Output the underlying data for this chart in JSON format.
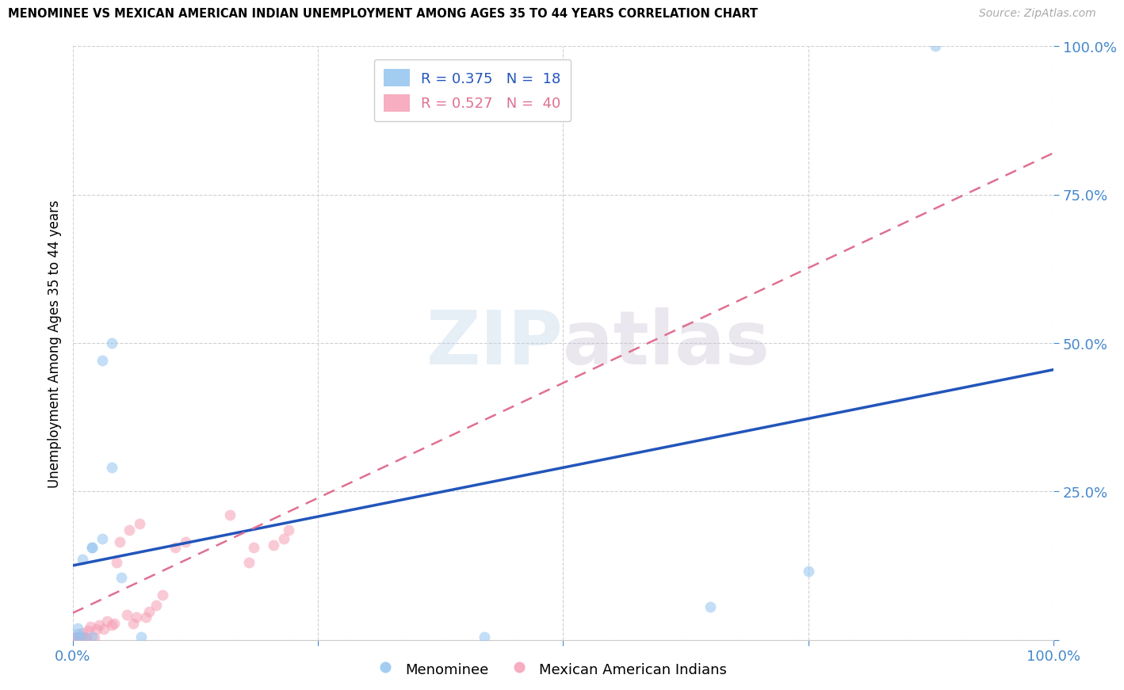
{
  "title": "MENOMINEE VS MEXICAN AMERICAN INDIAN UNEMPLOYMENT AMONG AGES 35 TO 44 YEARS CORRELATION CHART",
  "source": "Source: ZipAtlas.com",
  "ylabel_label": "Unemployment Among Ages 35 to 44 years",
  "xlim": [
    0,
    1.0
  ],
  "ylim": [
    0,
    1.0
  ],
  "xticks": [
    0.0,
    0.25,
    0.5,
    0.75,
    1.0
  ],
  "yticks": [
    0.0,
    0.25,
    0.5,
    0.75,
    1.0
  ],
  "xticklabels": [
    "0.0%",
    "",
    "",
    "",
    "100.0%"
  ],
  "yticklabels": [
    "",
    "25.0%",
    "50.0%",
    "75.0%",
    "100.0%"
  ],
  "background_color": "#ffffff",
  "watermark_zip": "ZIP",
  "watermark_atlas": "atlas",
  "menominee_color": "#93c4ef",
  "mexican_color": "#f5a0b5",
  "menominee_line_color": "#2255bb",
  "mexican_line_color": "#e07090",
  "R_menominee": 0.375,
  "N_menominee": 18,
  "R_mexican": 0.527,
  "N_mexican": 40,
  "menominee_scatter_x": [
    0.02,
    0.03,
    0.02,
    0.01,
    0.005,
    0.005,
    0.01,
    0.02,
    0.005,
    0.03,
    0.04,
    0.05,
    0.04,
    0.07,
    0.65,
    0.75,
    0.88,
    0.42
  ],
  "menominee_scatter_y": [
    0.155,
    0.17,
    0.155,
    0.135,
    0.02,
    0.01,
    0.005,
    0.005,
    0.005,
    0.47,
    0.5,
    0.105,
    0.29,
    0.005,
    0.055,
    0.115,
    1.0,
    0.005
  ],
  "mexican_scatter_x": [
    0.002,
    0.002,
    0.003,
    0.003,
    0.004,
    0.004,
    0.005,
    0.008,
    0.008,
    0.01,
    0.012,
    0.014,
    0.016,
    0.018,
    0.022,
    0.025,
    0.027,
    0.032,
    0.035,
    0.04,
    0.042,
    0.045,
    0.048,
    0.055,
    0.058,
    0.062,
    0.065,
    0.068,
    0.075,
    0.078,
    0.085,
    0.092,
    0.105,
    0.115,
    0.16,
    0.18,
    0.185,
    0.205,
    0.215,
    0.22
  ],
  "mexican_scatter_y": [
    0.002,
    0.003,
    0.002,
    0.003,
    0.003,
    0.004,
    0.002,
    0.004,
    0.005,
    0.012,
    0.003,
    0.004,
    0.015,
    0.022,
    0.004,
    0.018,
    0.025,
    0.018,
    0.032,
    0.025,
    0.028,
    0.13,
    0.165,
    0.042,
    0.185,
    0.028,
    0.038,
    0.195,
    0.038,
    0.048,
    0.058,
    0.075,
    0.155,
    0.165,
    0.21,
    0.13,
    0.155,
    0.16,
    0.17,
    0.185
  ],
  "menominee_line_x0": 0.0,
  "menominee_line_y0": 0.125,
  "menominee_line_x1": 1.0,
  "menominee_line_y1": 0.455,
  "mexican_line_x0": 0.0,
  "mexican_line_y0": 0.045,
  "mexican_line_x1": 1.0,
  "mexican_line_y1": 0.82,
  "grid_color": "#d0d0d0",
  "scatter_size": 100,
  "scatter_alpha": 0.55
}
